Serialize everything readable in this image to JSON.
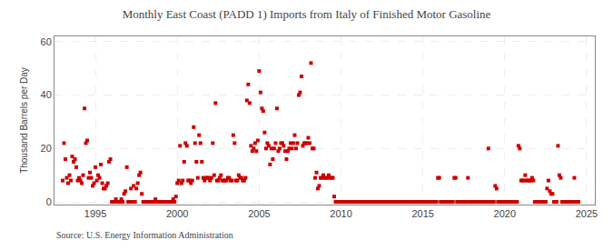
{
  "chart_data": {
    "type": "scatter",
    "title": "Monthly East Coast (PADD 1) Imports from Italy of Finished Motor Gasoline",
    "y_label": "Thousand Barrels per Day",
    "annotations": [
      "Source: U.S. Energy Information Administration"
    ],
    "color": "#cc0000",
    "marker": "square",
    "grid": true,
    "xlim": [
      1992.5,
      2025.5
    ],
    "ylim": [
      -1,
      62
    ],
    "xticks": [
      1995,
      2000,
      2005,
      2010,
      2015,
      2020,
      2025
    ],
    "yticks": [
      0,
      20,
      40,
      60
    ],
    "x": [
      1993.0,
      1993.083,
      1993.167,
      1993.25,
      1993.333,
      1993.417,
      1993.5,
      1993.583,
      1993.667,
      1993.75,
      1993.833,
      1993.917,
      1994.0,
      1994.083,
      1994.167,
      1994.25,
      1994.333,
      1994.417,
      1994.5,
      1994.583,
      1994.667,
      1994.75,
      1994.833,
      1994.917,
      1995.0,
      1995.083,
      1995.167,
      1995.25,
      1995.333,
      1995.417,
      1995.5,
      1995.583,
      1995.667,
      1995.75,
      1995.833,
      1995.917,
      1996.0,
      1996.083,
      1996.167,
      1996.25,
      1996.333,
      1996.417,
      1996.5,
      1996.583,
      1996.667,
      1996.75,
      1996.833,
      1996.917,
      1997.0,
      1997.083,
      1997.167,
      1997.25,
      1997.333,
      1997.417,
      1997.5,
      1997.583,
      1997.667,
      1997.75,
      1997.833,
      1997.917,
      1998.0,
      1998.083,
      1998.167,
      1998.25,
      1998.333,
      1998.417,
      1998.5,
      1998.583,
      1998.667,
      1998.75,
      1998.833,
      1998.917,
      1999.0,
      1999.083,
      1999.167,
      1999.25,
      1999.333,
      1999.417,
      1999.5,
      1999.583,
      1999.667,
      1999.75,
      1999.833,
      1999.917,
      2000.0,
      2000.083,
      2000.167,
      2000.25,
      2000.333,
      2000.417,
      2000.5,
      2000.583,
      2000.667,
      2000.75,
      2000.833,
      2000.917,
      2001.0,
      2001.083,
      2001.167,
      2001.25,
      2001.333,
      2001.417,
      2001.5,
      2001.583,
      2001.667,
      2001.75,
      2001.833,
      2001.917,
      2002.0,
      2002.083,
      2002.167,
      2002.25,
      2002.333,
      2002.417,
      2002.5,
      2002.583,
      2002.667,
      2002.75,
      2002.833,
      2002.917,
      2003.0,
      2003.083,
      2003.167,
      2003.25,
      2003.333,
      2003.417,
      2003.5,
      2003.583,
      2003.667,
      2003.75,
      2003.833,
      2003.917,
      2004.0,
      2004.083,
      2004.167,
      2004.25,
      2004.333,
      2004.417,
      2004.5,
      2004.583,
      2004.667,
      2004.75,
      2004.833,
      2004.917,
      2005.0,
      2005.083,
      2005.167,
      2005.25,
      2005.333,
      2005.417,
      2005.5,
      2005.583,
      2005.667,
      2005.75,
      2005.833,
      2005.917,
      2006.0,
      2006.083,
      2006.167,
      2006.25,
      2006.333,
      2006.417,
      2006.5,
      2006.583,
      2006.667,
      2006.75,
      2006.833,
      2006.917,
      2007.0,
      2007.083,
      2007.167,
      2007.25,
      2007.333,
      2007.417,
      2007.5,
      2007.583,
      2007.667,
      2007.75,
      2007.833,
      2007.917,
      2008.0,
      2008.083,
      2008.167,
      2008.25,
      2008.333,
      2008.417,
      2008.5,
      2008.583,
      2008.667,
      2008.75,
      2008.833,
      2008.917,
      2009.0,
      2009.083,
      2009.167,
      2009.25,
      2009.333,
      2009.417,
      2009.5,
      2009.583,
      2009.667,
      2009.75,
      2009.833,
      2009.917,
      2010.0,
      2010.083,
      2010.167,
      2010.25,
      2010.333,
      2010.417,
      2010.5,
      2010.583,
      2010.667,
      2010.75,
      2010.833,
      2010.917,
      2011.0,
      2011.083,
      2011.167,
      2011.25,
      2011.333,
      2011.417,
      2011.5,
      2011.583,
      2011.667,
      2011.75,
      2011.833,
      2011.917,
      2012.0,
      2012.083,
      2012.167,
      2012.25,
      2012.333,
      2012.417,
      2012.5,
      2012.583,
      2012.667,
      2012.75,
      2012.833,
      2012.917,
      2013.0,
      2013.083,
      2013.167,
      2013.25,
      2013.333,
      2013.417,
      2013.5,
      2013.583,
      2013.667,
      2013.75,
      2013.833,
      2013.917,
      2014.0,
      2014.083,
      2014.167,
      2014.25,
      2014.333,
      2014.417,
      2014.5,
      2014.583,
      2014.667,
      2014.75,
      2014.833,
      2014.917,
      2015.0,
      2015.083,
      2015.167,
      2015.25,
      2015.333,
      2015.417,
      2015.5,
      2015.583,
      2015.667,
      2015.75,
      2015.833,
      2015.917,
      2016.0,
      2016.083,
      2016.167,
      2016.25,
      2016.333,
      2016.417,
      2016.5,
      2016.583,
      2016.667,
      2016.75,
      2016.833,
      2016.917,
      2017.0,
      2017.083,
      2017.167,
      2017.25,
      2017.333,
      2017.417,
      2017.5,
      2017.583,
      2017.667,
      2017.75,
      2017.833,
      2017.917,
      2018.0,
      2018.083,
      2018.167,
      2018.25,
      2018.333,
      2018.417,
      2018.5,
      2018.583,
      2018.667,
      2018.75,
      2018.833,
      2018.917,
      2019.0,
      2019.083,
      2019.167,
      2019.25,
      2019.333,
      2019.417,
      2019.5,
      2019.583,
      2019.667,
      2019.75,
      2019.833,
      2019.917,
      2020.0,
      2020.083,
      2020.167,
      2020.25,
      2020.333,
      2020.417,
      2020.5,
      2020.583,
      2020.667,
      2020.75,
      2020.833,
      2020.917,
      2021.0,
      2021.083,
      2021.167,
      2021.25,
      2021.333,
      2021.417,
      2021.5,
      2021.583,
      2021.667,
      2021.75,
      2021.833,
      2021.917,
      2022.0,
      2022.083,
      2022.167,
      2022.25,
      2022.333,
      2022.417,
      2022.5,
      2022.583,
      2022.667,
      2022.75,
      2022.833,
      2022.917,
      2023.0,
      2023.083,
      2023.167,
      2023.25,
      2023.333,
      2023.417,
      2023.5,
      2023.583,
      2023.667,
      2023.75,
      2023.833,
      2023.917,
      2024.0,
      2024.083,
      2024.167,
      2024.25,
      2024.333,
      2024.417,
      2024.5
    ],
    "values": [
      8,
      22,
      16,
      9,
      7,
      10,
      8,
      17,
      15,
      16,
      13,
      8,
      9,
      8,
      7,
      10,
      35,
      22,
      23,
      9,
      11,
      9,
      6,
      7,
      13,
      8,
      10,
      9,
      14,
      7,
      5,
      5,
      6,
      7,
      15,
      16,
      0,
      0,
      0,
      1,
      0,
      0,
      0,
      1,
      0,
      3,
      4,
      13,
      0,
      0,
      5,
      0,
      6,
      0,
      5,
      7,
      10,
      11,
      3,
      0,
      0,
      0,
      0,
      0,
      0,
      0,
      0,
      0,
      1,
      0,
      0,
      0,
      0,
      0,
      0,
      0,
      0,
      0,
      0,
      0,
      0,
      1,
      0,
      2,
      7,
      8,
      21,
      7,
      8,
      15,
      22,
      21,
      8,
      8,
      7,
      8,
      28,
      22,
      15,
      9,
      25,
      22,
      15,
      9,
      8,
      9,
      9,
      9,
      8,
      9,
      22,
      10,
      37,
      8,
      8,
      9,
      10,
      8,
      8,
      8,
      8,
      9,
      9,
      8,
      8,
      25,
      22,
      8,
      8,
      10,
      9,
      9,
      8,
      8,
      9,
      38,
      44,
      37,
      21,
      19,
      20,
      22,
      19,
      23,
      49,
      41,
      35,
      34,
      26,
      20,
      22,
      21,
      14,
      20,
      16,
      20,
      22,
      35,
      19,
      20,
      22,
      22,
      21,
      19,
      16,
      19,
      20,
      22,
      20,
      22,
      25,
      20,
      22,
      40,
      41,
      47,
      21,
      22,
      22,
      22,
      24,
      22,
      52,
      20,
      20,
      9,
      11,
      5,
      6,
      9,
      9,
      10,
      9,
      9,
      9,
      10,
      9,
      9,
      9,
      2,
      0,
      0,
      0,
      0,
      0,
      0,
      0,
      0,
      0,
      0,
      0,
      0,
      0,
      0,
      0,
      0,
      0,
      0,
      0,
      0,
      0,
      0,
      0,
      0,
      0,
      0,
      0,
      0,
      0,
      0,
      0,
      0,
      0,
      0,
      0,
      0,
      0,
      0,
      0,
      0,
      0,
      0,
      0,
      0,
      0,
      0,
      0,
      0,
      0,
      0,
      0,
      0,
      0,
      0,
      0,
      0,
      0,
      0,
      0,
      0,
      0,
      0,
      0,
      0,
      0,
      0,
      0,
      0,
      0,
      0,
      0,
      0,
      0,
      0,
      0,
      9,
      9,
      0,
      0,
      0,
      0,
      0,
      0,
      0,
      0,
      0,
      0,
      9,
      9,
      0,
      0,
      0,
      0,
      0,
      0,
      0,
      0,
      9,
      0,
      0,
      0,
      0,
      0,
      0,
      0,
      0,
      0,
      0,
      0,
      0,
      0,
      0,
      20,
      0,
      0,
      0,
      0,
      6,
      5,
      0,
      0,
      0,
      0,
      0,
      0,
      0,
      0,
      0,
      0,
      0,
      0,
      0,
      0,
      0,
      21,
      20,
      8,
      8,
      8,
      10,
      8,
      8,
      8,
      8,
      9,
      8,
      0,
      0,
      0,
      0,
      0,
      0,
      0,
      0,
      0,
      5,
      8,
      4,
      3,
      3,
      0,
      0,
      0,
      21,
      10,
      9,
      0,
      0,
      0,
      0,
      0,
      0,
      0,
      0,
      0,
      9,
      0,
      0,
      0
    ]
  }
}
